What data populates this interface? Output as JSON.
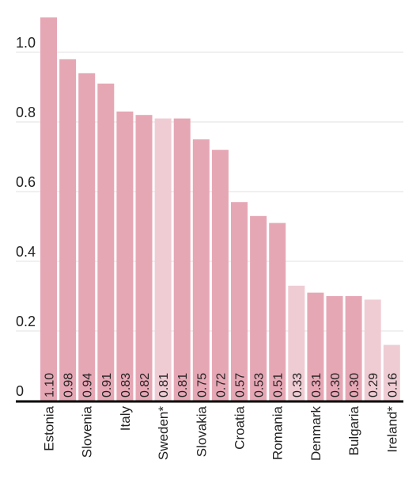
{
  "chart_data": {
    "type": "bar",
    "title": "",
    "xlabel": "",
    "ylabel": "",
    "ylim": [
      0,
      1.1
    ],
    "yticks": [
      0,
      0.2,
      0.4,
      0.6,
      0.8,
      1.0
    ],
    "ytick_labels": [
      "0",
      "0.2",
      "0.4",
      "0.6",
      "0.8",
      "1.0"
    ],
    "grid": true,
    "colors": {
      "bar": "#e6a7b5",
      "bar_light": "#efccd4",
      "axis": "#000000",
      "grid": "#e0e0e0",
      "text": "#222222"
    },
    "categories": [
      "Estonia",
      "",
      "Slovenia",
      "",
      "Italy",
      "",
      "Sweden*",
      "",
      "Slovakia",
      "",
      "Croatia",
      "",
      "Romania",
      "",
      "Denmark",
      "",
      "Bulgaria",
      "",
      "Ireland*"
    ],
    "values": [
      1.1,
      0.98,
      0.94,
      0.91,
      0.83,
      0.82,
      0.81,
      0.81,
      0.75,
      0.72,
      0.57,
      0.53,
      0.51,
      0.33,
      0.31,
      0.3,
      0.3,
      0.29,
      0.16
    ],
    "value_labels": [
      "1.10",
      "0.98",
      "0.94",
      "0.91",
      "0.83",
      "0.82",
      "0.81",
      "0.81",
      "0.75",
      "0.72",
      "0.57",
      "0.53",
      "0.51",
      "0.33",
      "0.31",
      "0.30",
      "0.30",
      "0.29",
      "0.16"
    ],
    "highlight": [
      true,
      true,
      true,
      true,
      true,
      true,
      false,
      true,
      true,
      true,
      true,
      true,
      true,
      false,
      true,
      true,
      true,
      false,
      false
    ]
  }
}
